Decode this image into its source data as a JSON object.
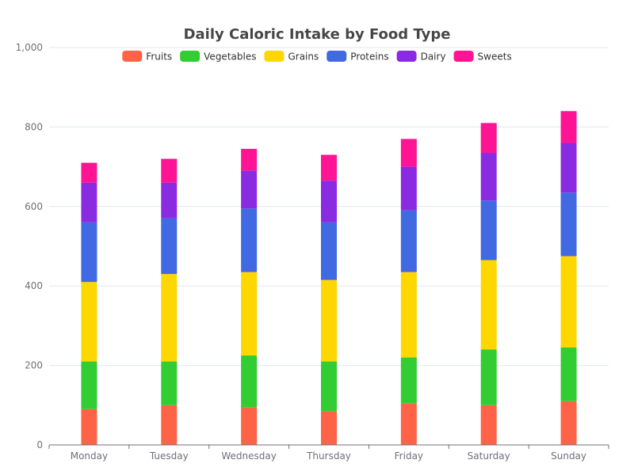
{
  "chart_data": {
    "type": "bar",
    "stacked": true,
    "title": "Daily Caloric Intake by Food Type",
    "xlabel": "",
    "ylabel": "",
    "categories": [
      "Monday",
      "Tuesday",
      "Wednesday",
      "Thursday",
      "Friday",
      "Saturday",
      "Sunday"
    ],
    "ylim": [
      0,
      1000
    ],
    "yticks": [
      0,
      200,
      400,
      600,
      800,
      1000
    ],
    "ytick_labels": [
      "0",
      "200",
      "400",
      "600",
      "800",
      "1,000"
    ],
    "grid": true,
    "legend_position": "top-center",
    "series": [
      {
        "name": "Fruits",
        "color": "#ff6347",
        "values": [
          90,
          100,
          95,
          85,
          105,
          100,
          110
        ]
      },
      {
        "name": "Vegetables",
        "color": "#32cd32",
        "values": [
          120,
          110,
          130,
          125,
          115,
          140,
          135
        ]
      },
      {
        "name": "Grains",
        "color": "#ffd700",
        "values": [
          200,
          220,
          210,
          205,
          215,
          225,
          230
        ]
      },
      {
        "name": "Proteins",
        "color": "#4169e1",
        "values": [
          150,
          140,
          160,
          145,
          155,
          150,
          160
        ]
      },
      {
        "name": "Dairy",
        "color": "#8a2be2",
        "values": [
          100,
          90,
          95,
          105,
          110,
          120,
          125
        ]
      },
      {
        "name": "Sweets",
        "color": "#ff1493",
        "values": [
          50,
          60,
          55,
          65,
          70,
          75,
          80
        ]
      }
    ]
  }
}
